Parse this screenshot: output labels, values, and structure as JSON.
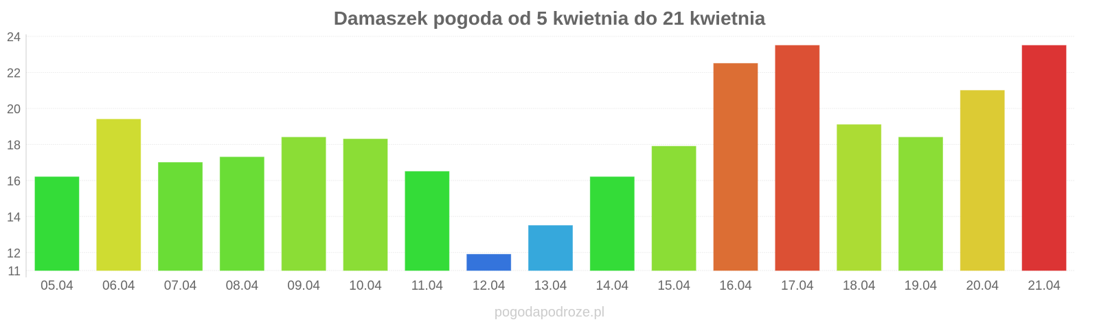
{
  "chart_data": {
    "type": "bar",
    "title": "Damaszek pogoda od 5 kwietnia do 21 kwietnia",
    "xlabel": "",
    "ylabel": "",
    "ylim": [
      11,
      24
    ],
    "yticks": [
      11,
      12,
      14,
      16,
      18,
      20,
      22,
      24
    ],
    "grid": true,
    "categories": [
      "05.04",
      "06.04",
      "07.04",
      "08.04",
      "09.04",
      "10.04",
      "11.04",
      "12.04",
      "13.04",
      "14.04",
      "15.04",
      "16.04",
      "17.04",
      "18.04",
      "19.04",
      "20.04",
      "21.04"
    ],
    "values": [
      16.2,
      19.4,
      17.0,
      17.3,
      18.4,
      18.3,
      16.5,
      11.9,
      13.5,
      16.2,
      17.9,
      22.5,
      23.5,
      19.1,
      18.4,
      21.0,
      23.5
    ],
    "colors": [
      "#34dc38",
      "#cfdc32",
      "#6add36",
      "#6add36",
      "#8bdd36",
      "#8bdd36",
      "#34dc38",
      "#3474dc",
      "#36a8dc",
      "#34dc38",
      "#8bdd36",
      "#dc6e34",
      "#dc5034",
      "#acdc34",
      "#8bdd36",
      "#dccb34",
      "#dc3434"
    ]
  },
  "watermark": "pogodapodroze.pl"
}
